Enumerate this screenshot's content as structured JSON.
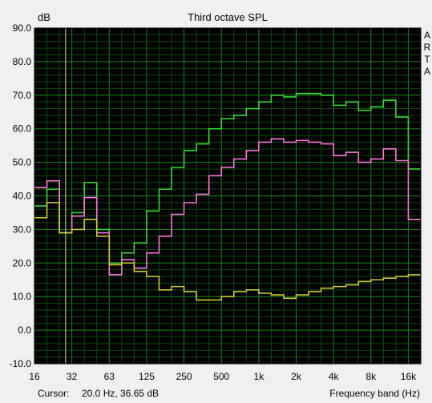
{
  "chart_data": {
    "type": "line",
    "title": "Third octave SPL",
    "ylabel": "dB",
    "xlabel": "Frequency band (Hz)",
    "ylim": [
      -10,
      90
    ],
    "y_ticks": [
      "90.0",
      "80.0",
      "70.0",
      "60.0",
      "50.0",
      "40.0",
      "30.0",
      "20.0",
      "10.0",
      "0.0",
      "-10.0"
    ],
    "x_tick_labels": [
      "16",
      "32",
      "63",
      "125",
      "250",
      "500",
      "1k",
      "2k",
      "4k",
      "8k",
      "16k"
    ],
    "watermark": [
      "A",
      "R",
      "T",
      "A"
    ],
    "cursor": {
      "label": "Cursor:",
      "value": "20.0 Hz, 36.65 dB",
      "band": 2
    },
    "colors": {
      "background": "#000000",
      "grid_major": "#1c8a1c",
      "grid_minor": "#0b4a0b",
      "cursor": "#e6e690"
    },
    "series": [
      {
        "color": "#33dd33",
        "values": [
          37,
          42,
          29,
          35,
          44,
          30,
          20,
          23,
          26,
          35.5,
          42,
          48.5,
          53.5,
          55.5,
          60,
          63,
          64,
          66,
          68,
          70,
          69.5,
          70.5,
          70.5,
          70,
          67,
          68,
          65.5,
          66.5,
          68.5,
          63.5,
          48
        ]
      },
      {
        "color": "#ff77dd",
        "values": [
          42.5,
          44.5,
          29,
          34,
          39.5,
          29,
          16.5,
          21,
          18.5,
          23,
          28,
          34.5,
          38,
          40.5,
          46,
          48.5,
          51,
          53.5,
          56,
          57,
          56,
          56.5,
          56,
          55.5,
          52,
          53,
          50,
          51,
          54,
          50.5,
          33
        ]
      },
      {
        "color": "#cccc33",
        "values": [
          33.5,
          38,
          29,
          30,
          33,
          28,
          19.5,
          20,
          17.5,
          16,
          12,
          13,
          11.5,
          9,
          9,
          10,
          11.5,
          12,
          11,
          10.5,
          9.5,
          10.5,
          11.5,
          12.5,
          13,
          13.5,
          14.5,
          15,
          15.5,
          16,
          16.5
        ]
      }
    ]
  }
}
